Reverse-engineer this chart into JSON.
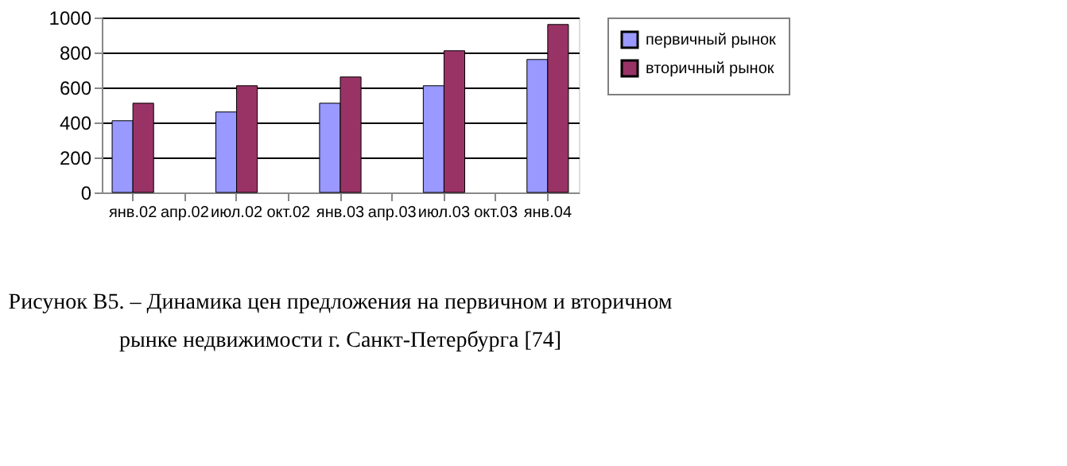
{
  "chart_data": {
    "type": "bar",
    "title": "Рисунок В5. – Динамика цен предложения на первичном и вторичном рынке недвижимости г. Санкт-Петербурга [74]",
    "categories": [
      "янв.02",
      "апр.02",
      "июл.02",
      "окт.02",
      "янв.03",
      "апр.03",
      "июл.03",
      "окт.03",
      "янв.04"
    ],
    "series": [
      {
        "name": "первичный рынок",
        "color": "#9999ff",
        "values": [
          410,
          null,
          460,
          null,
          510,
          null,
          610,
          null,
          760
        ]
      },
      {
        "name": "вторичный рынок",
        "color": "#993366",
        "values": [
          510,
          null,
          610,
          null,
          660,
          null,
          810,
          null,
          960
        ]
      }
    ],
    "ylim": [
      0,
      1000
    ],
    "yticks": [
      0,
      200,
      400,
      600,
      800,
      1000
    ],
    "grid": "y",
    "legend": "right"
  }
}
